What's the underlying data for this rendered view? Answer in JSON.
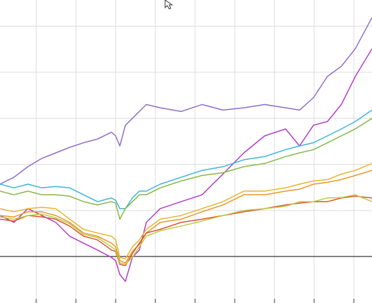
{
  "chart_data": {
    "type": "line",
    "x": [
      0,
      20,
      40,
      60,
      80,
      100,
      120,
      140,
      160,
      166,
      172,
      180,
      190,
      200,
      210,
      230,
      260,
      290,
      320,
      350,
      380,
      410,
      430,
      450,
      470,
      490,
      510,
      534
    ],
    "xlim": [
      0,
      534
    ],
    "xticks": [
      52,
      109,
      166,
      223,
      280,
      337,
      394,
      451,
      508
    ],
    "ylim": [
      -1.01,
      5.57
    ],
    "yticks": [
      0,
      1,
      2,
      3,
      4,
      5
    ],
    "grid": true,
    "series": [
      {
        "color": "#8a6fc9",
        "values": [
          1.57,
          1.72,
          1.95,
          2.13,
          2.25,
          2.37,
          2.47,
          2.55,
          2.7,
          2.62,
          2.4,
          2.85,
          3.0,
          3.15,
          3.3,
          3.23,
          3.15,
          3.3,
          3.18,
          3.23,
          3.3,
          3.23,
          3.18,
          3.45,
          3.91,
          4.13,
          4.51,
          5.19
        ]
      },
      {
        "color": "#b43cc8",
        "values": [
          0.89,
          0.74,
          1.04,
          0.89,
          0.74,
          0.44,
          0.29,
          0.14,
          -0.02,
          -0.09,
          -0.39,
          -0.54,
          -0.02,
          0.14,
          0.74,
          1.04,
          1.19,
          1.34,
          1.79,
          2.25,
          2.62,
          2.77,
          2.4,
          2.85,
          2.93,
          3.3,
          3.91,
          4.51
        ]
      },
      {
        "color": "#3db3dc",
        "values": [
          1.57,
          1.49,
          1.57,
          1.49,
          1.52,
          1.49,
          1.34,
          1.19,
          1.27,
          1.22,
          1.04,
          1.04,
          1.27,
          1.42,
          1.42,
          1.57,
          1.72,
          1.87,
          1.95,
          2.1,
          2.17,
          2.32,
          2.4,
          2.47,
          2.62,
          2.77,
          2.93,
          3.18
        ]
      },
      {
        "color": "#86b843",
        "values": [
          1.42,
          1.34,
          1.42,
          1.34,
          1.34,
          1.31,
          1.19,
          1.12,
          1.19,
          1.16,
          0.81,
          1.04,
          1.19,
          1.34,
          1.34,
          1.49,
          1.64,
          1.76,
          1.82,
          1.95,
          2.02,
          2.17,
          2.25,
          2.32,
          2.47,
          2.62,
          2.77,
          3.0
        ]
      },
      {
        "color": "#e8b42a",
        "values": [
          1.04,
          0.97,
          1.04,
          1.07,
          1.04,
          0.81,
          0.59,
          0.51,
          0.44,
          0.36,
          -0.02,
          -0.05,
          0.21,
          0.36,
          0.59,
          0.81,
          0.89,
          1.04,
          1.19,
          1.42,
          1.42,
          1.49,
          1.57,
          1.64,
          1.67,
          1.79,
          1.87,
          2.02
        ]
      },
      {
        "color": "#e8962a",
        "values": [
          0.89,
          0.86,
          0.97,
          0.97,
          0.89,
          0.74,
          0.51,
          0.44,
          0.29,
          0.21,
          -0.09,
          -0.14,
          0.11,
          0.26,
          0.51,
          0.74,
          0.81,
          0.97,
          1.12,
          1.34,
          1.34,
          1.42,
          1.46,
          1.57,
          1.61,
          1.67,
          1.76,
          1.87
        ]
      },
      {
        "color": "#d9532e",
        "values": [
          0.81,
          0.77,
          0.89,
          0.86,
          0.81,
          0.66,
          0.44,
          0.36,
          0.14,
          0.11,
          -0.17,
          -0.2,
          0.06,
          0.29,
          0.51,
          0.59,
          0.74,
          0.81,
          0.89,
          0.97,
          1.04,
          1.12,
          1.16,
          1.19,
          1.19,
          1.27,
          1.31,
          1.27
        ]
      },
      {
        "color": "#bccb45",
        "values": [
          0.86,
          0.81,
          0.89,
          0.92,
          0.84,
          0.71,
          0.48,
          0.41,
          0.21,
          0.14,
          -0.14,
          -0.17,
          -0.02,
          0.21,
          0.44,
          0.56,
          0.66,
          0.77,
          0.89,
          1.0,
          1.04,
          1.09,
          1.19,
          1.19,
          1.27,
          1.28,
          1.34,
          1.19
        ]
      }
    ]
  }
}
